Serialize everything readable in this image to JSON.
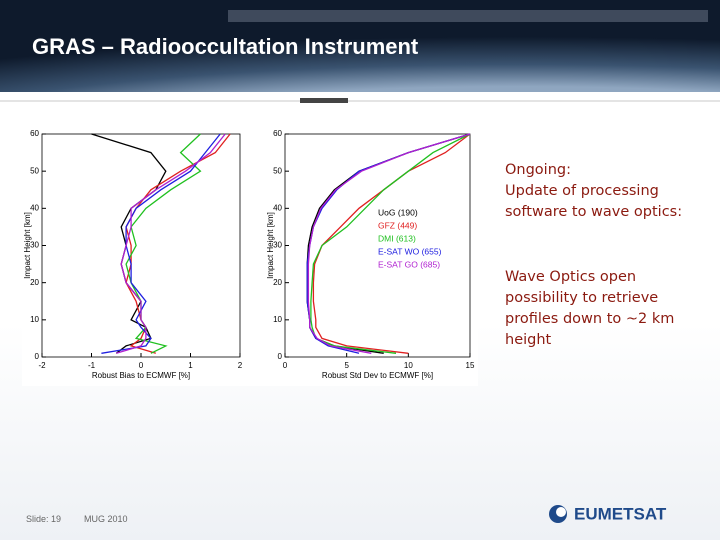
{
  "header": {
    "title": "GRAS – Radiooccultation Instrument"
  },
  "chart_data": [
    {
      "type": "line",
      "xlabel": "Robust Bias to ECMWF [%]",
      "ylabel": "Impact Height [km]",
      "xlim": [
        -2,
        2
      ],
      "xticks": [
        -2,
        -1,
        0,
        1,
        2
      ],
      "ylim": [
        0,
        60
      ],
      "yticks": [
        0,
        10,
        20,
        30,
        40,
        50,
        60
      ],
      "y": [
        1,
        3,
        5,
        8,
        10,
        15,
        20,
        25,
        30,
        35,
        40,
        45,
        50,
        55,
        60
      ],
      "series": [
        {
          "name": "UoG (190)",
          "color": "#000000",
          "values": [
            -0.5,
            -0.3,
            0.2,
            0.1,
            -0.2,
            0,
            -0.3,
            -0.4,
            -0.3,
            -0.4,
            -0.2,
            0.3,
            0.5,
            0.2,
            -1
          ]
        },
        {
          "name": "GFZ (449)",
          "color": "#e02020",
          "values": [
            0.3,
            -0.2,
            0,
            0.1,
            0,
            -0.1,
            -0.3,
            -0.2,
            -0.2,
            -0.3,
            -0.1,
            0.2,
            0.8,
            1.5,
            1.8
          ]
        },
        {
          "name": "DMI (613)",
          "color": "#20c020",
          "values": [
            0.2,
            0.5,
            -0.1,
            0.1,
            0,
            0,
            -0.2,
            -0.3,
            -0.1,
            -0.2,
            0.1,
            0.6,
            1.2,
            0.8,
            1.2
          ]
        },
        {
          "name": "E-SAT WO (655)",
          "color": "#2020e0",
          "values": [
            -0.8,
            0.1,
            0.2,
            0,
            -0.1,
            0.1,
            -0.2,
            -0.2,
            -0.3,
            -0.3,
            -0.1,
            0.4,
            1,
            1.3,
            1.6
          ]
        },
        {
          "name": "E-SAT GO (685)",
          "color": "#b020d0",
          "values": [
            -0.5,
            0,
            0.1,
            0.1,
            0,
            0,
            -0.3,
            -0.4,
            -0.3,
            -0.2,
            -0.2,
            0.3,
            0.9,
            1.4,
            1.7
          ]
        }
      ]
    },
    {
      "type": "line",
      "xlabel": "Robust Std Dev to ECMWF [%]",
      "ylabel": "Impact Height [km]",
      "xlim": [
        0,
        15
      ],
      "xticks": [
        0,
        5,
        10,
        15
      ],
      "ylim": [
        0,
        60
      ],
      "yticks": [
        0,
        10,
        20,
        30,
        40,
        50,
        60
      ],
      "legend": "center right",
      "y": [
        1,
        3,
        5,
        8,
        10,
        15,
        20,
        25,
        30,
        35,
        40,
        45,
        50,
        55,
        60
      ],
      "series": [
        {
          "name": "UoG (190)",
          "color": "#000000",
          "values": [
            8,
            4,
            2.5,
            2,
            2,
            1.8,
            1.8,
            1.8,
            1.9,
            2.2,
            2.8,
            4,
            6,
            10,
            15
          ]
        },
        {
          "name": "GFZ (449)",
          "color": "#e02020",
          "values": [
            10,
            5,
            3,
            2.5,
            2.5,
            2.3,
            2.3,
            2.4,
            3,
            4.5,
            6,
            8,
            10,
            13,
            15
          ]
        },
        {
          "name": "DMI (613)",
          "color": "#20c020",
          "values": [
            9,
            4,
            2.5,
            2.2,
            2.1,
            2.1,
            2.2,
            2.3,
            3,
            5,
            6.5,
            8,
            10,
            12,
            15
          ]
        },
        {
          "name": "E-SAT WO (655)",
          "color": "#2020e0",
          "values": [
            6,
            3.5,
            2.5,
            2,
            2,
            1.8,
            1.8,
            1.8,
            2,
            2.3,
            3,
            4.2,
            6,
            10,
            15
          ]
        },
        {
          "name": "E-SAT GO (685)",
          "color": "#b020d0",
          "values": [
            7,
            3.7,
            2.6,
            2,
            2,
            1.9,
            1.9,
            1.9,
            2,
            2.3,
            2.9,
            4.1,
            6.2,
            10,
            15
          ]
        }
      ]
    }
  ],
  "text": {
    "ongoing": [
      "Ongoing:",
      "Update of processing software to wave optics:"
    ],
    "wave_optics": "Wave Optics open possibility to retrieve profiles down to ~2 km height"
  },
  "footer": {
    "slide": "Slide: 19",
    "event": "MUG 2010",
    "logo": "EUMETSAT"
  }
}
